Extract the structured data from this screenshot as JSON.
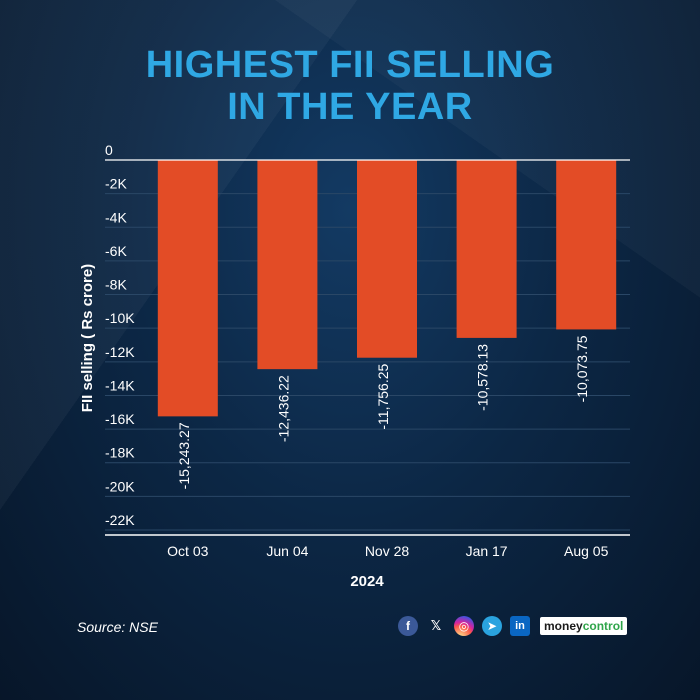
{
  "title": {
    "line1": "HIGHEST FII SELLING",
    "line2": "IN THE YEAR"
  },
  "footer": {
    "source": "Source: NSE",
    "brand_part1": "money",
    "brand_part2": "control",
    "social_icons": [
      "facebook-icon",
      "x-icon",
      "instagram-icon",
      "telegram-icon",
      "linkedin-icon"
    ]
  },
  "colors": {
    "bar": "#e34c26",
    "title": "#2fa8e4",
    "background": "#0c2745",
    "grid": "#2a4766",
    "axis": "#ffffff"
  },
  "chart_data": {
    "type": "bar",
    "categories": [
      "Oct 03",
      "Jun 04",
      "Nov 28",
      "Jan 17",
      "Aug 05"
    ],
    "values": [
      -15243.27,
      -12436.22,
      -11756.25,
      -10578.13,
      -10073.75
    ],
    "data_labels": [
      "-15,243.27",
      "-12,436.22",
      "-11,756.25",
      "-10,578.13",
      "-10,073.75"
    ],
    "xlabel": "2024",
    "ylabel": "FII selling ( Rs crore)",
    "ylim": [
      -22000,
      0
    ],
    "ytick_values": [
      0,
      -2000,
      -4000,
      -6000,
      -8000,
      -10000,
      -12000,
      -14000,
      -16000,
      -18000,
      -20000,
      -22000
    ],
    "ytick_labels": [
      "0",
      "-2K",
      "-4K",
      "-6K",
      "-8K",
      "-10K",
      "-12K",
      "-14K",
      "-16K",
      "-18K",
      "-20K",
      "-22K"
    ],
    "grid": true
  }
}
